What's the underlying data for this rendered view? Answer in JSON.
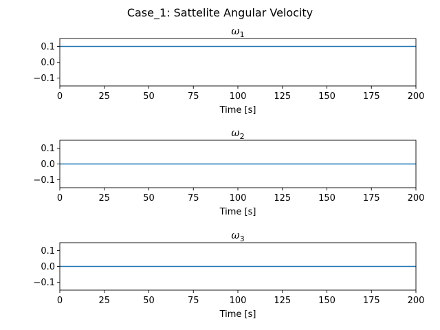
{
  "suptitle": "Case_1: Sattelite Angular Velocity",
  "chart_data": [
    {
      "type": "line",
      "title_symbol": "ω",
      "title_sub": "1",
      "xlabel": "Time [s]",
      "ylabel": "",
      "xlim": [
        0,
        200
      ],
      "ylim": [
        -0.15,
        0.15
      ],
      "xticks": [
        0,
        25,
        50,
        75,
        100,
        125,
        150,
        175,
        200
      ],
      "yticks": [
        0.1,
        0.0,
        -0.1
      ],
      "ytick_labels": [
        "0.1",
        "0.0",
        "−0.1"
      ],
      "grid": false,
      "series": [
        {
          "x": [
            0,
            200
          ],
          "y": [
            0.1,
            0.1
          ],
          "color": "#1f77b4"
        }
      ]
    },
    {
      "type": "line",
      "title_symbol": "ω",
      "title_sub": "2",
      "xlabel": "Time [s]",
      "ylabel": "",
      "xlim": [
        0,
        200
      ],
      "ylim": [
        -0.15,
        0.15
      ],
      "xticks": [
        0,
        25,
        50,
        75,
        100,
        125,
        150,
        175,
        200
      ],
      "yticks": [
        0.1,
        0.0,
        -0.1
      ],
      "ytick_labels": [
        "0.1",
        "0.0",
        "−0.1"
      ],
      "grid": false,
      "series": [
        {
          "x": [
            0,
            200
          ],
          "y": [
            0.0,
            0.0
          ],
          "color": "#1f77b4"
        }
      ]
    },
    {
      "type": "line",
      "title_symbol": "ω",
      "title_sub": "3",
      "xlabel": "Time [s]",
      "ylabel": "",
      "xlim": [
        0,
        200
      ],
      "ylim": [
        -0.15,
        0.15
      ],
      "xticks": [
        0,
        25,
        50,
        75,
        100,
        125,
        150,
        175,
        200
      ],
      "yticks": [
        0.1,
        0.0,
        -0.1
      ],
      "ytick_labels": [
        "0.1",
        "0.0",
        "−0.1"
      ],
      "grid": false,
      "series": [
        {
          "x": [
            0,
            200
          ],
          "y": [
            0.0,
            0.0
          ],
          "color": "#1f77b4"
        }
      ]
    }
  ]
}
